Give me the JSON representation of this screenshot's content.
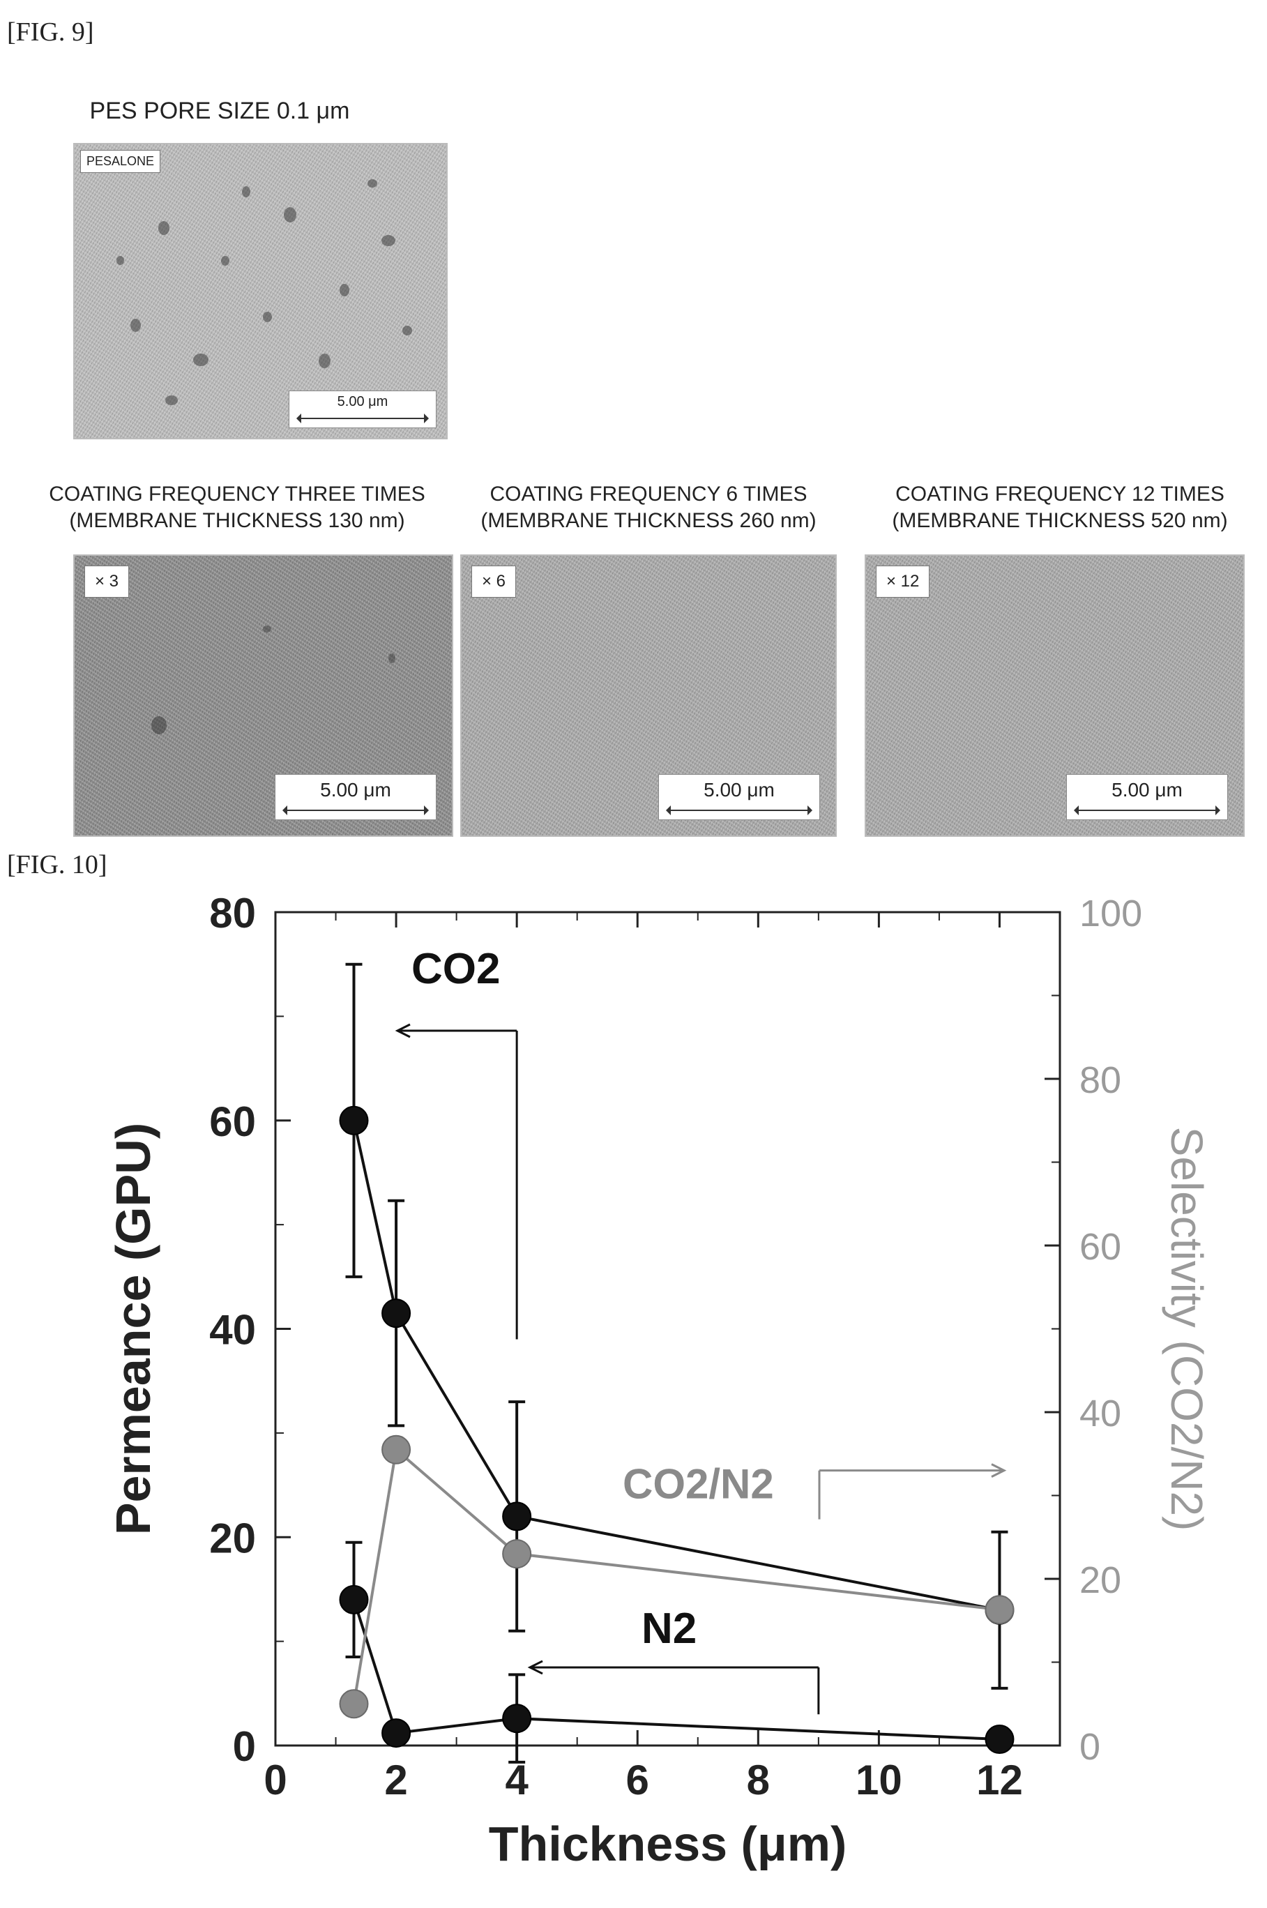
{
  "fig9": {
    "label": "[FIG. 9]",
    "top_caption": "PES PORE SIZE 0.1 μm",
    "top_panel": {
      "tag": "PESALONE",
      "scale": "5.00 μm"
    },
    "panels": [
      {
        "caption_line1": "COATING FREQUENCY THREE TIMES",
        "caption_line2": "(MEMBRANE THICKNESS 130 nm)",
        "tag": "× 3",
        "scale": "5.00 μm"
      },
      {
        "caption_line1": "COATING FREQUENCY 6 TIMES",
        "caption_line2": "(MEMBRANE THICKNESS 260 nm)",
        "tag": "× 6",
        "scale": "5.00 μm"
      },
      {
        "caption_line1": "COATING FREQUENCY 12 TIMES",
        "caption_line2": "(MEMBRANE THICKNESS 520 nm)",
        "tag": "× 12",
        "scale": "5.00 μm"
      }
    ]
  },
  "fig10": {
    "label": "[FIG. 10]"
  },
  "chart_data": {
    "type": "line",
    "xlabel": "Thickness (μm)",
    "ylabel": "Permeance (GPU)",
    "y2label": "Selectivity (CO2/N2)",
    "xlim": [
      0,
      13
    ],
    "ylim": [
      0,
      80
    ],
    "y2lim": [
      0,
      100
    ],
    "x_ticks": [
      0,
      2,
      4,
      6,
      8,
      10,
      12
    ],
    "y_ticks": [
      0,
      20,
      40,
      60,
      80
    ],
    "y2_ticks": [
      0,
      20,
      40,
      60,
      80,
      100
    ],
    "grid": false,
    "series": [
      {
        "name": "CO2",
        "axis": "left",
        "color": "#111111",
        "x": [
          1.3,
          2,
          4,
          12
        ],
        "y": [
          60,
          41.5,
          22,
          13
        ],
        "err": [
          15,
          10.8,
          11,
          7.5
        ]
      },
      {
        "name": "N2",
        "axis": "left",
        "color": "#111111",
        "x": [
          1.3,
          2,
          4,
          12
        ],
        "y": [
          14,
          1.2,
          2.6,
          0.6
        ],
        "err": [
          5.5,
          0,
          4.2,
          0
        ]
      },
      {
        "name": "CO2/N2",
        "axis": "right",
        "color": "#8a8a8a",
        "x": [
          1.3,
          2,
          4,
          12
        ],
        "y": [
          5,
          35.5,
          23,
          16.3
        ],
        "err": [
          0,
          0,
          0,
          0
        ]
      }
    ],
    "annotations": [
      "CO2",
      "N2",
      "CO2/N2"
    ]
  }
}
